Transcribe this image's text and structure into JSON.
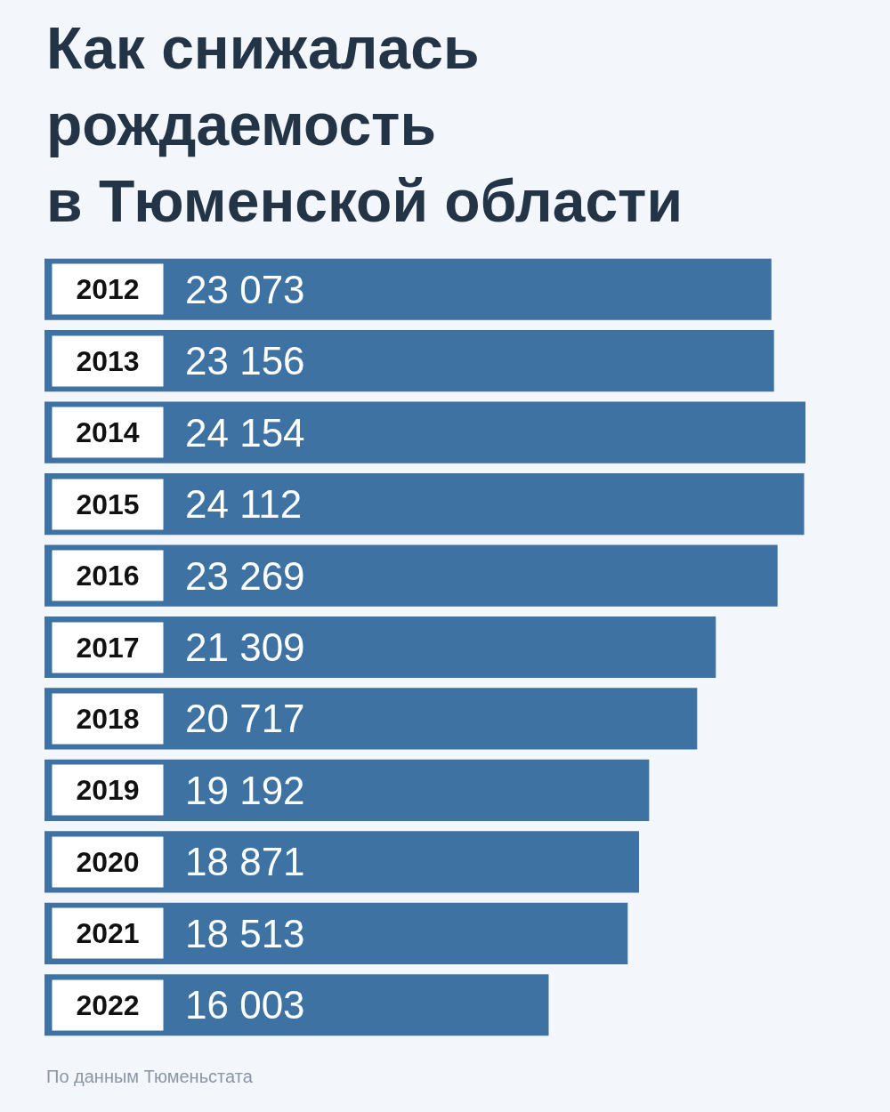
{
  "chart_data": {
    "type": "bar",
    "orientation": "horizontal",
    "title": "Как снижалась\nрождаемость\nв Тюменской области",
    "categories": [
      "2012",
      "2013",
      "2014",
      "2015",
      "2016",
      "2017",
      "2018",
      "2019",
      "2020",
      "2021",
      "2022"
    ],
    "values": [
      23073,
      23156,
      24154,
      24112,
      23269,
      21309,
      20717,
      19192,
      18871,
      18513,
      16003
    ],
    "value_labels": [
      "23 073",
      "23 156",
      "24 154",
      "24 112",
      "23 269",
      "21 309",
      "20 717",
      "19 192",
      "18 871",
      "18 513",
      "16 003"
    ],
    "color": "#3d72a3",
    "grid": false,
    "legend": false,
    "tick_labels": "y",
    "annotations": [
      "По данным Тюменьстата"
    ]
  }
}
